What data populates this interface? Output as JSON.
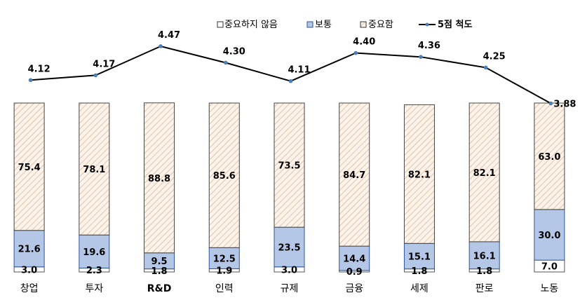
{
  "chart_data": {
    "type": "bar",
    "stacked": true,
    "categories": [
      "창업",
      "투자",
      "R&D",
      "인력",
      "규제",
      "금융",
      "세제",
      "판로",
      "노동"
    ],
    "series": [
      {
        "name": "중요하지 않음",
        "values": [
          3.0,
          2.3,
          1.8,
          1.9,
          3.0,
          0.9,
          1.8,
          1.8,
          7.0
        ],
        "color": "#ffffff"
      },
      {
        "name": "보통",
        "values": [
          21.6,
          19.6,
          9.5,
          12.5,
          23.5,
          14.4,
          15.1,
          16.1,
          30.0
        ],
        "color": "#b4c7e7"
      },
      {
        "name": "중요함",
        "values": [
          75.4,
          78.1,
          88.8,
          85.6,
          73.5,
          84.7,
          82.1,
          82.1,
          63.0
        ],
        "color": "#fbe5d6"
      }
    ],
    "line_series": {
      "name": "5점 척도",
      "values": [
        4.12,
        4.17,
        4.47,
        4.3,
        4.11,
        4.4,
        4.36,
        4.25,
        3.88
      ],
      "color": "#000000",
      "marker_color": "#4a7ebb"
    },
    "ylim": [
      0,
      100
    ],
    "line_ylim": [
      3.5,
      4.6
    ],
    "legend_position": "top-right",
    "grid": false
  },
  "legend": {
    "not_important": "중요하지 않음",
    "normal": "보통",
    "important": "중요함",
    "scale": "5점 척도"
  }
}
